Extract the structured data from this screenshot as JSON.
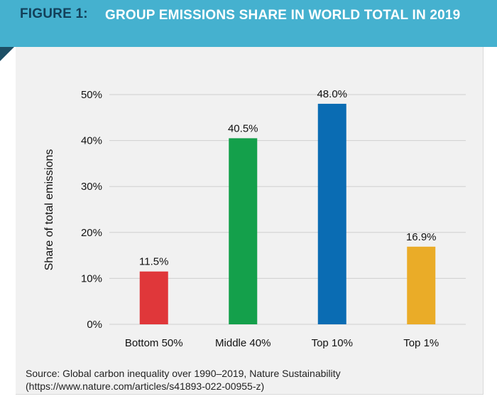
{
  "figure": {
    "prefix": "FIGURE 1:",
    "title": "GROUP EMISSIONS SHARE IN WORLD TOTAL IN 2019"
  },
  "colors": {
    "header_bg": "#45b1cf",
    "prefix_text": "#13405a",
    "panel_bg": "#f1f1f1"
  },
  "chart_data": {
    "type": "bar",
    "title": "GROUP EMISSIONS SHARE IN WORLD TOTAL IN 2019",
    "xlabel": "",
    "ylabel": "Share of total emissions",
    "categories": [
      "Bottom 50%",
      "Middle 40%",
      "Top 10%",
      "Top 1%"
    ],
    "values": [
      11.5,
      40.5,
      48.0,
      16.9
    ],
    "data_labels": [
      "11.5%",
      "40.5%",
      "48.0%",
      "16.9%"
    ],
    "bar_colors": [
      "#e0373a",
      "#14a04b",
      "#0a6cb3",
      "#eaac28"
    ],
    "ylim": [
      0,
      50
    ],
    "yticks": [
      0,
      10,
      20,
      30,
      40,
      50
    ],
    "ytick_labels": [
      "0%",
      "10%",
      "20%",
      "30%",
      "40%",
      "50%"
    ],
    "grid": true,
    "legend": "none"
  },
  "source": {
    "line1": "Source: Global carbon inequality over 1990–2019, Nature Sustainability",
    "line2": "(https://www.nature.com/articles/s41893-022-00955-z)"
  }
}
